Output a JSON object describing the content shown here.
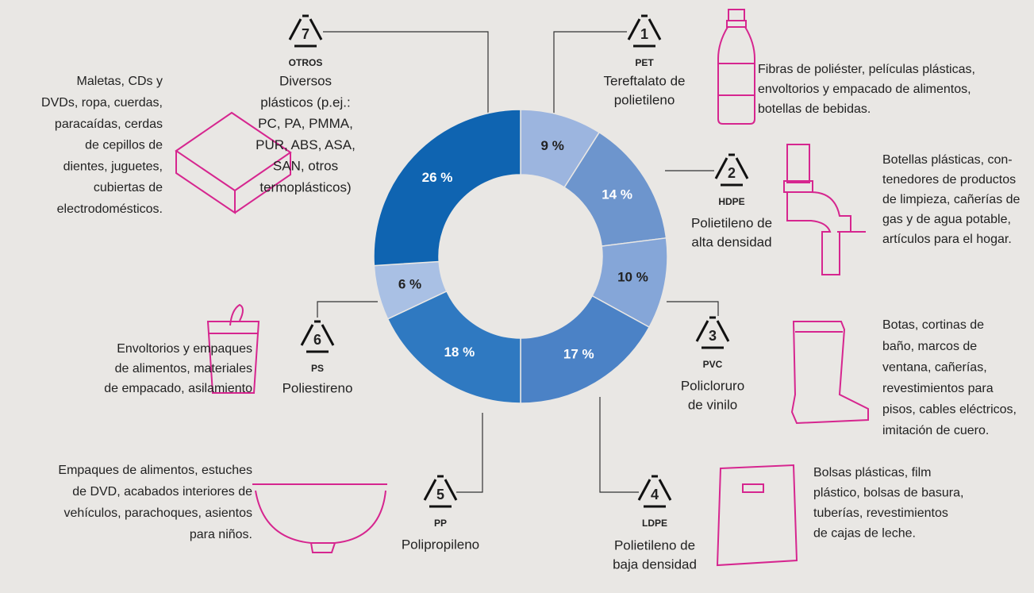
{
  "chart_data": {
    "type": "pie",
    "categories": [
      "PET",
      "HDPE",
      "PVC",
      "LDPE",
      "PP",
      "PS",
      "OTROS"
    ],
    "codes": [
      "1",
      "2",
      "3",
      "4",
      "5",
      "6",
      "7"
    ],
    "values": [
      9,
      14,
      10,
      17,
      18,
      6,
      26
    ],
    "value_labels": [
      "9 %",
      "14 %",
      "10 %",
      "17 %",
      "18 %",
      "6 %",
      "26 %"
    ],
    "colors": [
      "#9cb5df",
      "#6d95cd",
      "#85a6d8",
      "#4b82c6",
      "#2f79c1",
      "#a9c0e4",
      "#0f64b1"
    ],
    "names": [
      [
        "Tereftalato de",
        "polietileno"
      ],
      [
        "Polietileno de",
        "alta densidad"
      ],
      [
        "Policloruro",
        "de vinilo"
      ],
      [
        "Polietileno de",
        "baja densidad"
      ],
      [
        "Polipropileno"
      ],
      [
        "Poliestireno"
      ],
      [
        "Diversos",
        "plásticos (p.ej.:",
        "PC, PA, PMMA,",
        "PUR, ABS, ASA,",
        "SAN, otros",
        "termoplásticos)"
      ]
    ],
    "descriptions": [
      [
        "Fibras de poliéster, películas plásticas,",
        "envoltorios y empacado de alimentos,",
        "botellas de bebidas."
      ],
      [
        "Botellas plásticas, con-",
        "tenedores de productos",
        "de limpieza, cañerías de",
        "gas y de agua potable,",
        "artículos para el hogar."
      ],
      [
        "Botas, cortinas de",
        "baño, marcos de",
        "ventana, cañerías,",
        "revestimientos para",
        "pisos, cables eléctricos,",
        "imitación de cuero."
      ],
      [
        "Bolsas plásticas, film",
        "plástico, bolsas de basura,",
        "tuberías, revestimientos",
        "de cajas de leche."
      ],
      [
        "Empaques de alimentos, estuches",
        "de DVD, acabados interiores de",
        "vehículos, parachoques, asientos",
        "para niños."
      ],
      [
        "Envoltorios y empaques",
        "de alimentos, materiales",
        "de empacado, asilamiento"
      ],
      [
        "Maletas, CDs y",
        "DVDs, ropa, cuerdas,",
        "paracaídas, cerdas",
        "de cepillos de",
        "dientes, juguetes,",
        "cubiertas de",
        "electrodomésticos."
      ]
    ]
  }
}
